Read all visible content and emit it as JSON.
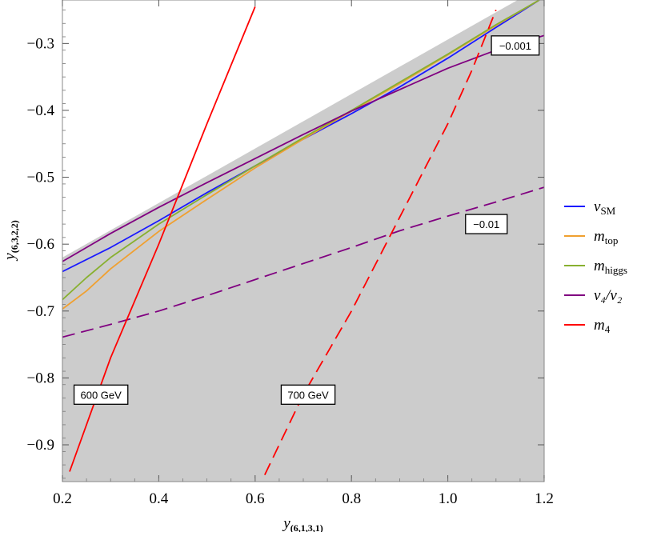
{
  "chart_data": {
    "type": "line",
    "title": "",
    "xlabel": "y(6,1,3,1)",
    "ylabel": "y(6,3,2,2)",
    "xlim": [
      0.2,
      1.2
    ],
    "ylim": [
      -0.955,
      -0.235
    ],
    "x_ticks": [
      0.2,
      0.4,
      0.6,
      0.8,
      1.0,
      1.2
    ],
    "x_tick_labels": [
      "0.2",
      "0.4",
      "0.6",
      "0.8",
      "1.0",
      "1.2"
    ],
    "y_ticks": [
      -0.3,
      -0.4,
      -0.5,
      -0.6,
      -0.7,
      -0.8,
      -0.9
    ],
    "y_tick_labels": [
      "−0.3",
      "−0.4",
      "−0.5",
      "−0.6",
      "−0.7",
      "−0.8",
      "−0.9"
    ],
    "grid": false,
    "legend_position": "right",
    "shaded_region": {
      "color": "#cccccc",
      "boundary": [
        [
          0.2,
          -0.62
        ],
        [
          1.145,
          -0.235
        ]
      ]
    },
    "series": [
      {
        "name": "vSM",
        "color": "#1a1aff",
        "style": "solid",
        "x": [
          0.2,
          0.3,
          0.4,
          0.5,
          0.6,
          0.7,
          0.8,
          0.9,
          1.0,
          1.1,
          1.19
        ],
        "y": [
          -0.641,
          -0.605,
          -0.565,
          -0.523,
          -0.483,
          -0.443,
          -0.405,
          -0.365,
          -0.322,
          -0.276,
          -0.235
        ]
      },
      {
        "name": "mtop",
        "color": "#f0a030",
        "style": "solid",
        "x": [
          0.2,
          0.25,
          0.3,
          0.4,
          0.5,
          0.6,
          0.7,
          0.8,
          0.9,
          1.0,
          1.1,
          1.19
        ],
        "y": [
          -0.697,
          -0.67,
          -0.637,
          -0.581,
          -0.533,
          -0.486,
          -0.443,
          -0.401,
          -0.36,
          -0.317,
          -0.273,
          -0.235
        ]
      },
      {
        "name": "mhiggs",
        "color": "#88b030",
        "style": "solid",
        "x": [
          0.2,
          0.25,
          0.3,
          0.4,
          0.5,
          0.6,
          0.7,
          0.8,
          0.9,
          1.0,
          1.1,
          1.19
        ],
        "y": [
          -0.683,
          -0.65,
          -0.62,
          -0.57,
          -0.526,
          -0.483,
          -0.441,
          -0.4,
          -0.358,
          -0.316,
          -0.272,
          -0.235
        ]
      },
      {
        "name": "v4/v2",
        "color": "#800080",
        "style": "solid",
        "x": [
          0.2,
          0.3,
          0.4,
          0.5,
          0.6,
          0.7,
          0.8,
          0.9,
          1.0,
          1.1,
          1.2
        ],
        "y": [
          -0.626,
          -0.584,
          -0.545,
          -0.508,
          -0.472,
          -0.436,
          -0.401,
          -0.369,
          -0.337,
          -0.31,
          -0.288
        ]
      },
      {
        "name": "v4/v2 -0.01",
        "color": "#800080",
        "style": "dashed",
        "x": [
          0.2,
          0.3,
          0.4,
          0.5,
          0.6,
          0.7,
          0.8,
          0.9,
          1.0,
          1.1,
          1.2
        ],
        "y": [
          -0.739,
          -0.72,
          -0.7,
          -0.677,
          -0.653,
          -0.629,
          -0.605,
          -0.58,
          -0.558,
          -0.537,
          -0.515
        ]
      },
      {
        "name": "m4 600 GeV",
        "color": "#ff0000",
        "style": "solid",
        "x": [
          0.215,
          0.3,
          0.4,
          0.5,
          0.6
        ],
        "y": [
          -0.94,
          -0.77,
          -0.6,
          -0.42,
          -0.245
        ]
      },
      {
        "name": "m4 700 GeV",
        "color": "#ff0000",
        "style": "dashed",
        "x": [
          0.62,
          0.7,
          0.8,
          0.9,
          1.0,
          1.05,
          1.1
        ],
        "y": [
          -0.945,
          -0.825,
          -0.7,
          -0.56,
          -0.42,
          -0.34,
          -0.25
        ]
      }
    ],
    "legend": [
      {
        "label": "v",
        "sub": "SM",
        "color": "#1a1aff"
      },
      {
        "label": "m",
        "sub": "top",
        "color": "#f0a030"
      },
      {
        "label": "m",
        "sub": "higgs",
        "color": "#88b030"
      },
      {
        "label": "v₄/v₂",
        "sub": "",
        "color": "#800080"
      },
      {
        "label": "m",
        "sub": "4",
        "color": "#ff0000"
      }
    ],
    "annotations": [
      {
        "text": "600 GeV",
        "x": 0.28,
        "y": -0.825
      },
      {
        "text": "700 GeV",
        "x": 0.71,
        "y": -0.825
      },
      {
        "text": "−0.001",
        "x": 1.14,
        "y": -0.303
      },
      {
        "text": "−0.01",
        "x": 1.08,
        "y": -0.57
      }
    ]
  }
}
